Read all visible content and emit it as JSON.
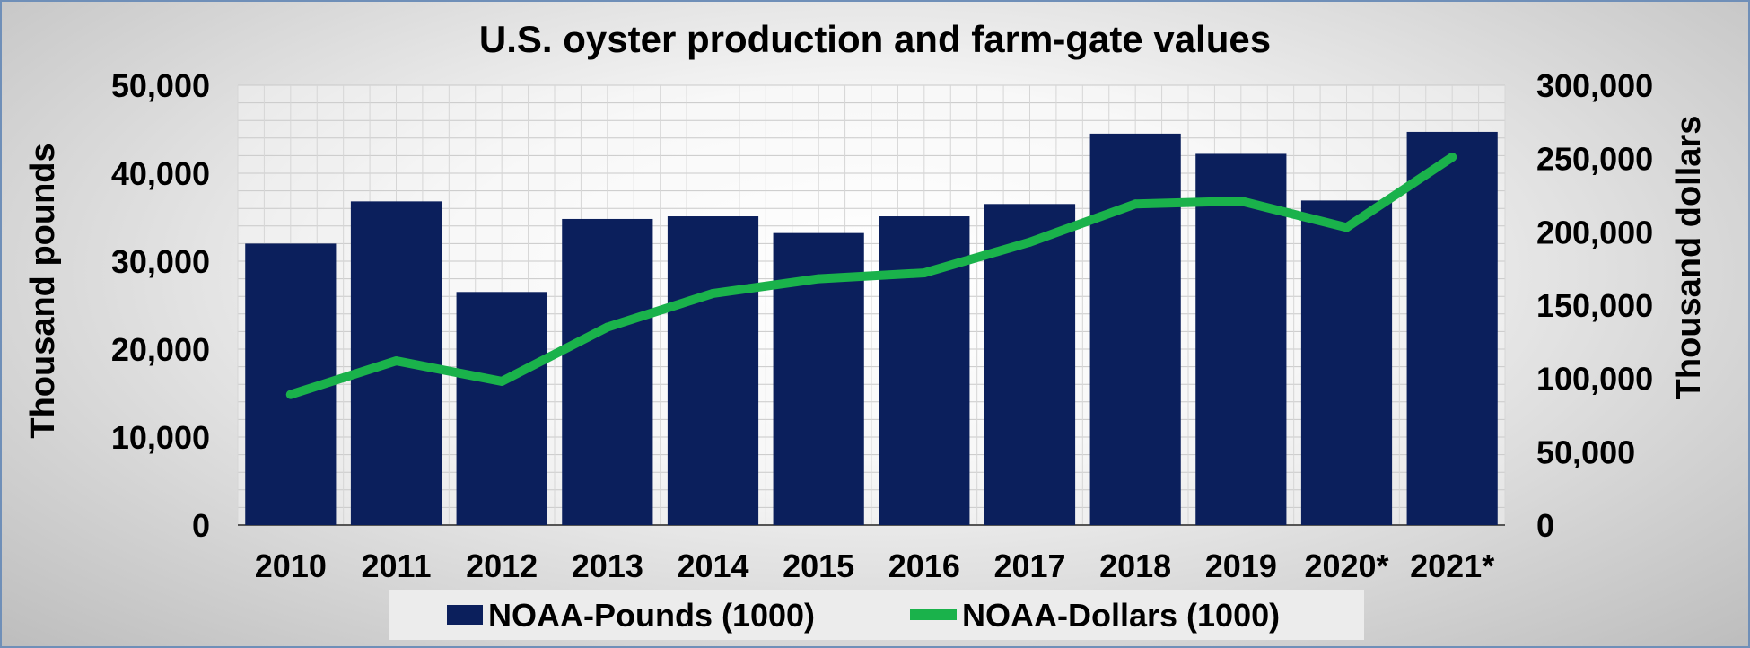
{
  "chart_data": {
    "type": "bar",
    "title": "U.S. oyster production and farm-gate values",
    "categories": [
      "2010",
      "2011",
      "2012",
      "2013",
      "2014",
      "2015",
      "2016",
      "2017",
      "2018",
      "2019",
      "2020*",
      "2021*"
    ],
    "series": [
      {
        "name": "NOAA-Pounds (1000)",
        "type": "bar",
        "axis": "left",
        "color": "#0b1f5c",
        "values": [
          32000,
          36800,
          26500,
          34800,
          35100,
          33200,
          35100,
          36500,
          44500,
          42200,
          36900,
          44700
        ]
      },
      {
        "name": "NOAA-Dollars (1000)",
        "type": "line",
        "axis": "right",
        "color": "#1ab24b",
        "values": [
          89000,
          112000,
          98000,
          135000,
          158000,
          168000,
          172000,
          193000,
          219000,
          221000,
          203000,
          251000
        ]
      }
    ],
    "y_left": {
      "label": "Thousand pounds",
      "lim": [
        0,
        50000
      ],
      "ticks": [
        "0",
        "10,000",
        "20,000",
        "30,000",
        "40,000",
        "50,000"
      ]
    },
    "y_right": {
      "label": "Thousand dollars",
      "lim": [
        0,
        300000
      ],
      "ticks": [
        "0",
        "50,000",
        "100,000",
        "150,000",
        "200,000",
        "250,000",
        "300,000"
      ]
    },
    "grid": true,
    "legend": "bottom"
  }
}
